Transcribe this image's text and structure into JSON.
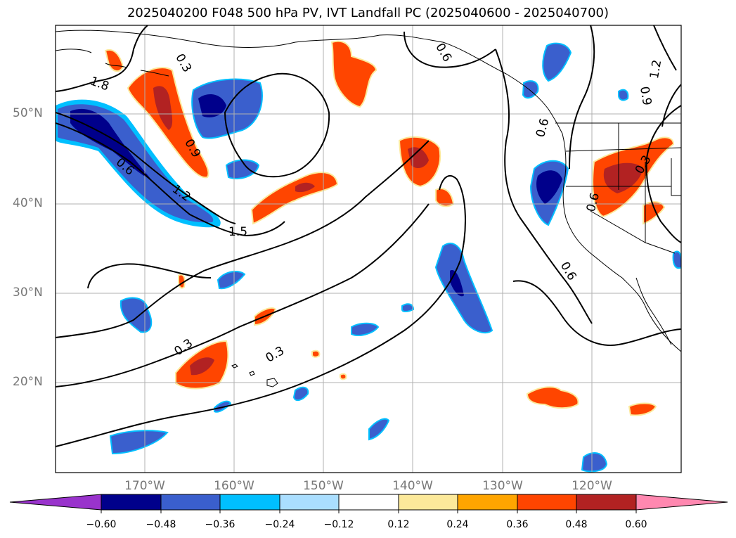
{
  "title": "2025040200 F048 500 hPa PV, IVT Landfall PC (2025040600 - 2025040700)",
  "map": {
    "lon_range": [
      -180,
      -110
    ],
    "lat_range": [
      10,
      60
    ],
    "lat_labels": [
      "50°N",
      "40°N",
      "30°N",
      "20°N"
    ],
    "lon_labels": [
      "170°W",
      "160°W",
      "150°W",
      "140°W",
      "130°W",
      "120°W"
    ],
    "contour_labels": [
      "1.8",
      "0.3",
      "0.9",
      "0.6",
      "1.2",
      "1.5",
      "0.3",
      "0.3",
      "0.6",
      "0.6",
      "0.6",
      "0.3",
      "0.6",
      "1.2",
      "0.9"
    ]
  },
  "colorbar": {
    "ticks": [
      "−0.60",
      "−0.48",
      "−0.36",
      "−0.24",
      "−0.12",
      "0.12",
      "0.24",
      "0.36",
      "0.48",
      "0.60"
    ],
    "colors": {
      "neg_extend": "#9933cc",
      "neg_060": "#00008b",
      "neg_048": "#3a5fcd",
      "neg_036": "#00bfff",
      "neg_024": "#aadeff",
      "zero": "#ffffff",
      "pos_012": "#fce99a",
      "pos_024": "#ffa500",
      "pos_036": "#ff4500",
      "pos_048": "#b22222",
      "pos_extend": "#ff88b0"
    }
  }
}
